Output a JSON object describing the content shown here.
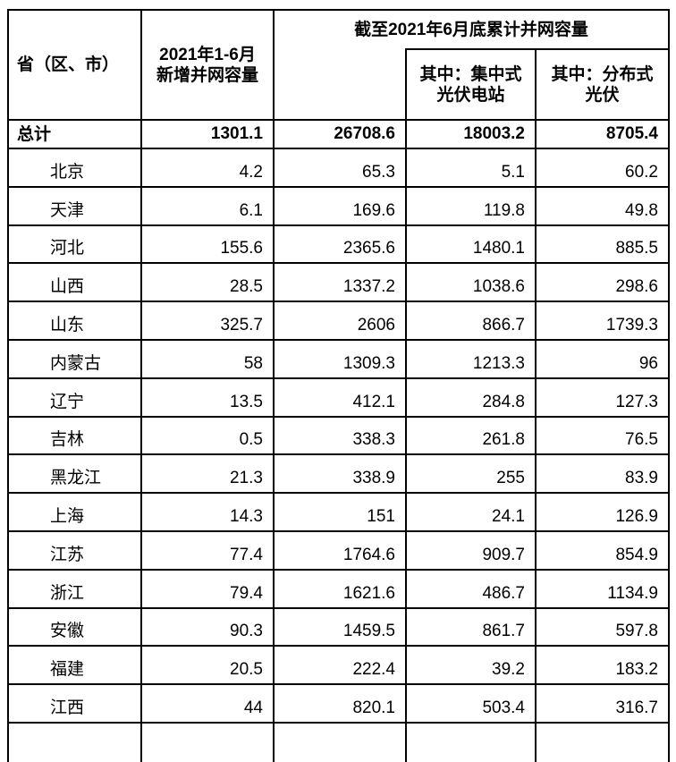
{
  "table": {
    "header": {
      "province": "省（区、市）",
      "new_capacity_line1": "2021年1-6月",
      "new_capacity_line2": "新增并网容量",
      "cumulative_title": "截至2021年6月底累计并网容量",
      "centralized_line1": "其中：集中式",
      "centralized_line2": "光伏电站",
      "distributed_line1": "其中：分布式",
      "distributed_line2": "光伏"
    },
    "total": {
      "label": "总计",
      "values": [
        "1301.1",
        "26708.6",
        "18003.2",
        "8705.4"
      ]
    },
    "rows": [
      {
        "province": "北京",
        "values": [
          "4.2",
          "65.3",
          "5.1",
          "60.2"
        ]
      },
      {
        "province": "天津",
        "values": [
          "6.1",
          "169.6",
          "119.8",
          "49.8"
        ]
      },
      {
        "province": "河北",
        "values": [
          "155.6",
          "2365.6",
          "1480.1",
          "885.5"
        ]
      },
      {
        "province": "山西",
        "values": [
          "28.5",
          "1337.2",
          "1038.6",
          "298.6"
        ]
      },
      {
        "province": "山东",
        "values": [
          "325.7",
          "2606",
          "866.7",
          "1739.3"
        ]
      },
      {
        "province": "内蒙古",
        "values": [
          "58",
          "1309.3",
          "1213.3",
          "96"
        ]
      },
      {
        "province": "辽宁",
        "values": [
          "13.5",
          "412.1",
          "284.8",
          "127.3"
        ]
      },
      {
        "province": "吉林",
        "values": [
          "0.5",
          "338.3",
          "261.8",
          "76.5"
        ]
      },
      {
        "province": "黑龙江",
        "values": [
          "21.3",
          "338.9",
          "255",
          "83.9"
        ]
      },
      {
        "province": "上海",
        "values": [
          "14.3",
          "151",
          "24.1",
          "126.9"
        ]
      },
      {
        "province": "江苏",
        "values": [
          "77.4",
          "1764.6",
          "909.7",
          "854.9"
        ]
      },
      {
        "province": "浙江",
        "values": [
          "79.4",
          "1621.6",
          "486.7",
          "1134.9"
        ]
      },
      {
        "province": "安徽",
        "values": [
          "90.3",
          "1459.5",
          "861.7",
          "597.8"
        ]
      },
      {
        "province": "福建",
        "values": [
          "20.5",
          "222.4",
          "39.2",
          "183.2"
        ]
      },
      {
        "province": "江西",
        "values": [
          "44",
          "820.1",
          "503.4",
          "316.7"
        ]
      }
    ]
  },
  "colors": {
    "border": "#000000",
    "text": "#000000",
    "background": "#ffffff"
  }
}
